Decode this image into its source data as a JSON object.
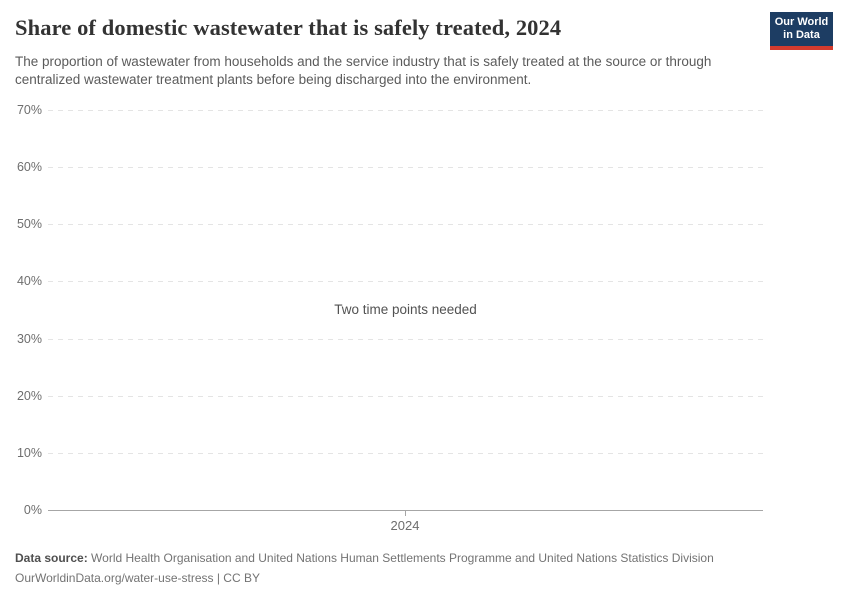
{
  "header": {
    "title": "Share of domestic wastewater that is safely treated, 2024",
    "subtitle": "The proportion of wastewater from households and the service industry that is safely treated at the source or through centralized wastewater treatment plants before being discharged into the environment.",
    "logo": {
      "text": "Our World in Data",
      "bg_color": "#1d3d63",
      "stripe_color": "#d43b2d"
    }
  },
  "chart_data": {
    "type": "line",
    "title": "Share of domestic wastewater that is safely treated, 2024",
    "series": [],
    "empty_message": "Two time points needed",
    "x_axis": {
      "ticks": [
        "2024"
      ]
    },
    "y_axis": {
      "ticks": [
        "0%",
        "10%",
        "20%",
        "30%",
        "40%",
        "50%",
        "60%",
        "70%"
      ],
      "range": [
        0,
        70
      ],
      "gridlines": "dashed"
    },
    "legend": null,
    "colors": {
      "gridline": "#e4e4e4",
      "axis": "#a6a6a6",
      "tick_label": "#6e6e6e"
    }
  },
  "footer": {
    "datasource_label": "Data source:",
    "datasource_text": " World Health Organisation and United Nations Human Settlements Programme and United Nations Statistics Division",
    "license_line": "OurWorldinData.org/water-use-stress | CC BY"
  }
}
